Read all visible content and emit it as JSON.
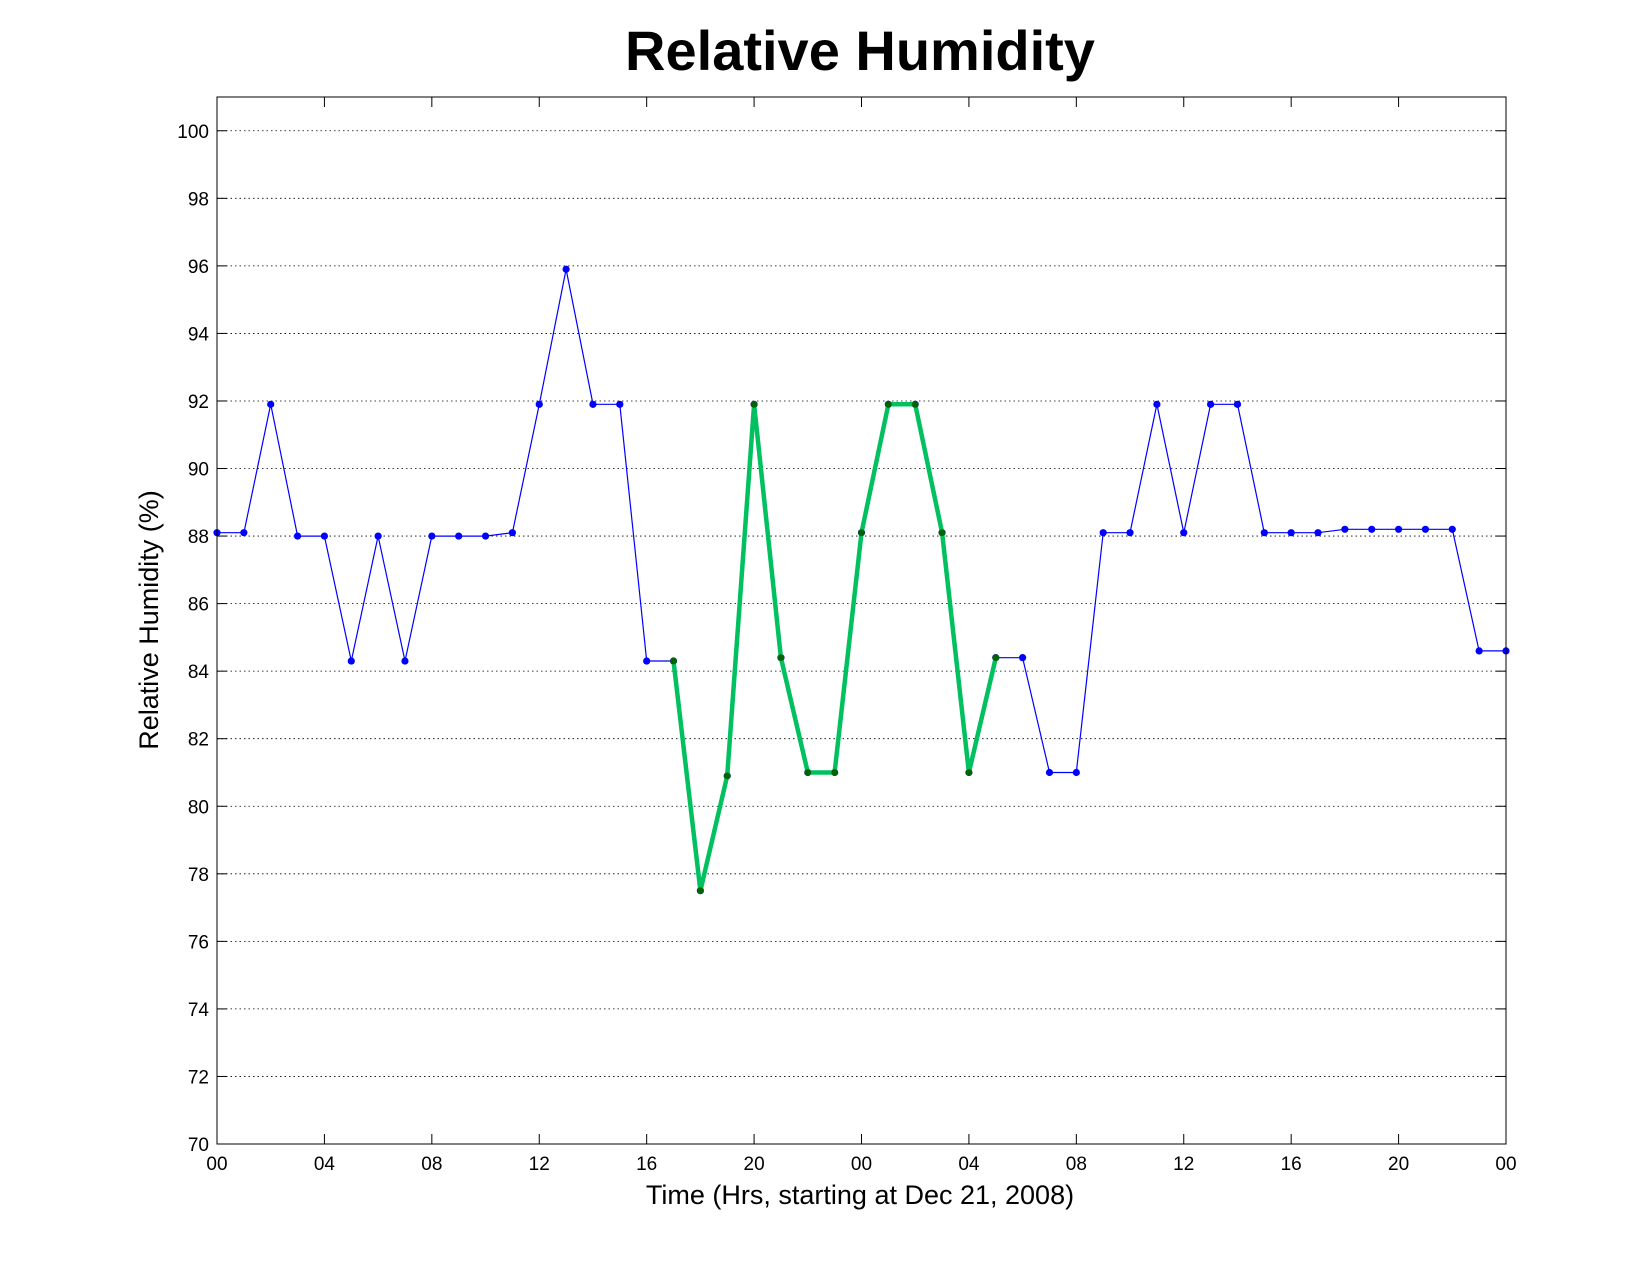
{
  "chart_data": {
    "type": "line",
    "title": "Relative Humidity",
    "xlabel": "Time (Hrs, starting at Dec 21, 2008)",
    "ylabel": "Relative Humidity (%)",
    "xlim": [
      0,
      48
    ],
    "ylim": [
      70,
      101
    ],
    "grid": "y-dotted",
    "x_ticks": [
      0,
      4,
      8,
      12,
      16,
      20,
      24,
      28,
      32,
      36,
      40,
      44,
      48
    ],
    "x_tick_labels": [
      "00",
      "04",
      "08",
      "12",
      "16",
      "20",
      "00",
      "04",
      "08",
      "12",
      "16",
      "20",
      "00"
    ],
    "y_ticks": [
      70,
      72,
      74,
      76,
      78,
      80,
      82,
      84,
      86,
      88,
      90,
      92,
      94,
      96,
      98,
      100
    ],
    "y_tick_labels": [
      "70",
      "72",
      "74",
      "76",
      "78",
      "80",
      "82",
      "84",
      "86",
      "88",
      "90",
      "92",
      "94",
      "96",
      "98",
      "100"
    ],
    "series": [
      {
        "color": "#0000ff",
        "x": [
          0,
          1,
          2,
          3,
          4,
          5,
          6,
          7,
          8,
          9,
          10,
          11,
          12,
          13,
          14,
          15,
          16,
          17,
          18,
          19,
          20,
          21,
          22,
          23,
          24,
          25,
          26,
          27,
          28,
          29,
          30,
          31,
          32,
          33,
          34,
          35,
          36,
          37,
          38,
          39,
          40,
          41,
          42,
          43,
          44,
          45,
          46,
          47,
          48
        ],
        "values": [
          88.1,
          88.1,
          91.9,
          88.0,
          88.0,
          84.3,
          88.0,
          84.3,
          88.0,
          88.0,
          88.0,
          88.1,
          91.9,
          95.9,
          91.9,
          91.9,
          84.3,
          84.3,
          77.5,
          80.9,
          91.9,
          84.4,
          81.0,
          81.0,
          88.1,
          91.9,
          91.9,
          88.1,
          81.0,
          84.4,
          84.4,
          81.0,
          81.0,
          88.1,
          88.1,
          91.9,
          88.1,
          91.9,
          91.9,
          88.1,
          88.1,
          88.1,
          88.2,
          88.2,
          88.2,
          88.2,
          88.2,
          84.6,
          84.6
        ]
      },
      {
        "color": "#00c060",
        "marker_color": "#006400",
        "x": [
          17,
          18,
          19,
          20,
          21,
          22,
          23,
          24,
          25,
          26,
          27,
          28,
          29
        ],
        "values": [
          84.3,
          77.5,
          80.9,
          91.9,
          84.4,
          81.0,
          81.0,
          88.1,
          91.9,
          91.9,
          88.1,
          81.0,
          84.4
        ]
      }
    ]
  }
}
